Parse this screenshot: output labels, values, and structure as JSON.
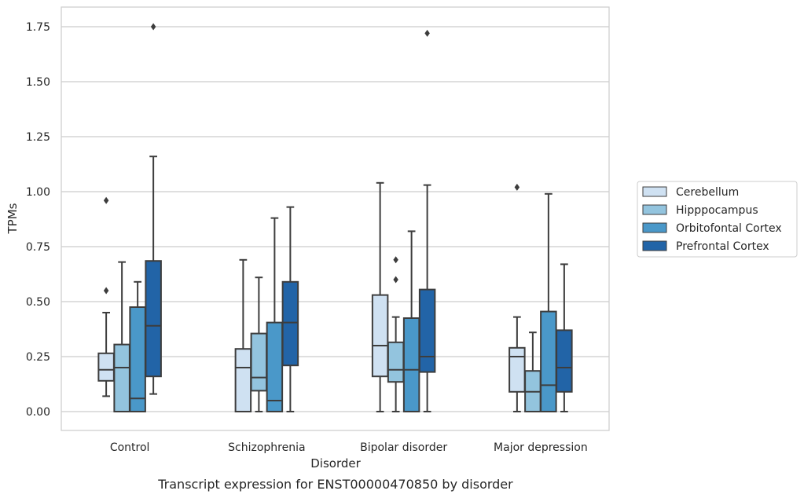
{
  "chart_data": {
    "type": "box",
    "title": "",
    "caption": "Transcript expression for ENST00000470850 by disorder",
    "xlabel": "Disorder",
    "ylabel": "TPMs",
    "ylim": [
      -0.08,
      1.84
    ],
    "yticks": [
      0.0,
      0.25,
      0.5,
      0.75,
      1.0,
      1.25,
      1.5,
      1.75
    ],
    "ytick_labels": [
      "0.00",
      "0.25",
      "0.50",
      "0.75",
      "1.00",
      "1.25",
      "1.50",
      "1.75"
    ],
    "grid": true,
    "legend_position": "right",
    "categories": [
      "Control",
      "Schizophrenia",
      "Bipolar disorder",
      "Major depression"
    ],
    "series": [
      {
        "name": "Cerebellum",
        "color": "#cfe1f2",
        "boxes": [
          {
            "whisker_low": 0.07,
            "q1": 0.14,
            "median": 0.19,
            "q3": 0.265,
            "whisker_high": 0.45,
            "outliers": [
              0.55,
              0.96
            ]
          },
          {
            "whisker_low": 0.0,
            "q1": 0.0,
            "median": 0.2,
            "q3": 0.285,
            "whisker_high": 0.69,
            "outliers": []
          },
          {
            "whisker_low": 0.0,
            "q1": 0.16,
            "median": 0.3,
            "q3": 0.53,
            "whisker_high": 1.04,
            "outliers": []
          },
          {
            "whisker_low": 0.0,
            "q1": 0.09,
            "median": 0.25,
            "q3": 0.29,
            "whisker_high": 0.43,
            "outliers": [
              1.02
            ]
          }
        ]
      },
      {
        "name": "Hipppocampus",
        "color": "#93c4de",
        "boxes": [
          {
            "whisker_low": 0.0,
            "q1": 0.0,
            "median": 0.2,
            "q3": 0.305,
            "whisker_high": 0.68,
            "outliers": []
          },
          {
            "whisker_low": 0.0,
            "q1": 0.095,
            "median": 0.155,
            "q3": 0.355,
            "whisker_high": 0.61,
            "outliers": []
          },
          {
            "whisker_low": 0.0,
            "q1": 0.135,
            "median": 0.19,
            "q3": 0.315,
            "whisker_high": 0.43,
            "outliers": [
              0.6,
              0.69
            ]
          },
          {
            "whisker_low": 0.0,
            "q1": 0.0,
            "median": 0.09,
            "q3": 0.185,
            "whisker_high": 0.36,
            "outliers": []
          }
        ]
      },
      {
        "name": "Orbitofontal Cortex",
        "color": "#4a98c9",
        "boxes": [
          {
            "whisker_low": 0.0,
            "q1": 0.0,
            "median": 0.06,
            "q3": 0.475,
            "whisker_high": 0.59,
            "outliers": []
          },
          {
            "whisker_low": 0.0,
            "q1": 0.0,
            "median": 0.05,
            "q3": 0.405,
            "whisker_high": 0.88,
            "outliers": []
          },
          {
            "whisker_low": 0.0,
            "q1": 0.0,
            "median": 0.19,
            "q3": 0.425,
            "whisker_high": 0.82,
            "outliers": []
          },
          {
            "whisker_low": 0.0,
            "q1": 0.0,
            "median": 0.12,
            "q3": 0.455,
            "whisker_high": 0.99,
            "outliers": []
          }
        ]
      },
      {
        "name": "Prefrontal Cortex",
        "color": "#2264a7",
        "boxes": [
          {
            "whisker_low": 0.08,
            "q1": 0.16,
            "median": 0.39,
            "q3": 0.685,
            "whisker_high": 1.16,
            "outliers": [
              1.75
            ]
          },
          {
            "whisker_low": 0.0,
            "q1": 0.21,
            "median": 0.405,
            "q3": 0.59,
            "whisker_high": 0.93,
            "outliers": []
          },
          {
            "whisker_low": 0.0,
            "q1": 0.18,
            "median": 0.25,
            "q3": 0.555,
            "whisker_high": 1.03,
            "outliers": [
              1.72
            ]
          },
          {
            "whisker_low": 0.0,
            "q1": 0.09,
            "median": 0.2,
            "q3": 0.37,
            "whisker_high": 0.67,
            "outliers": []
          }
        ]
      }
    ]
  },
  "colors": {
    "grid": "#cccccc",
    "frame": "#cccccc",
    "box_edge": "#3d3d3d",
    "text": "#262626"
  }
}
